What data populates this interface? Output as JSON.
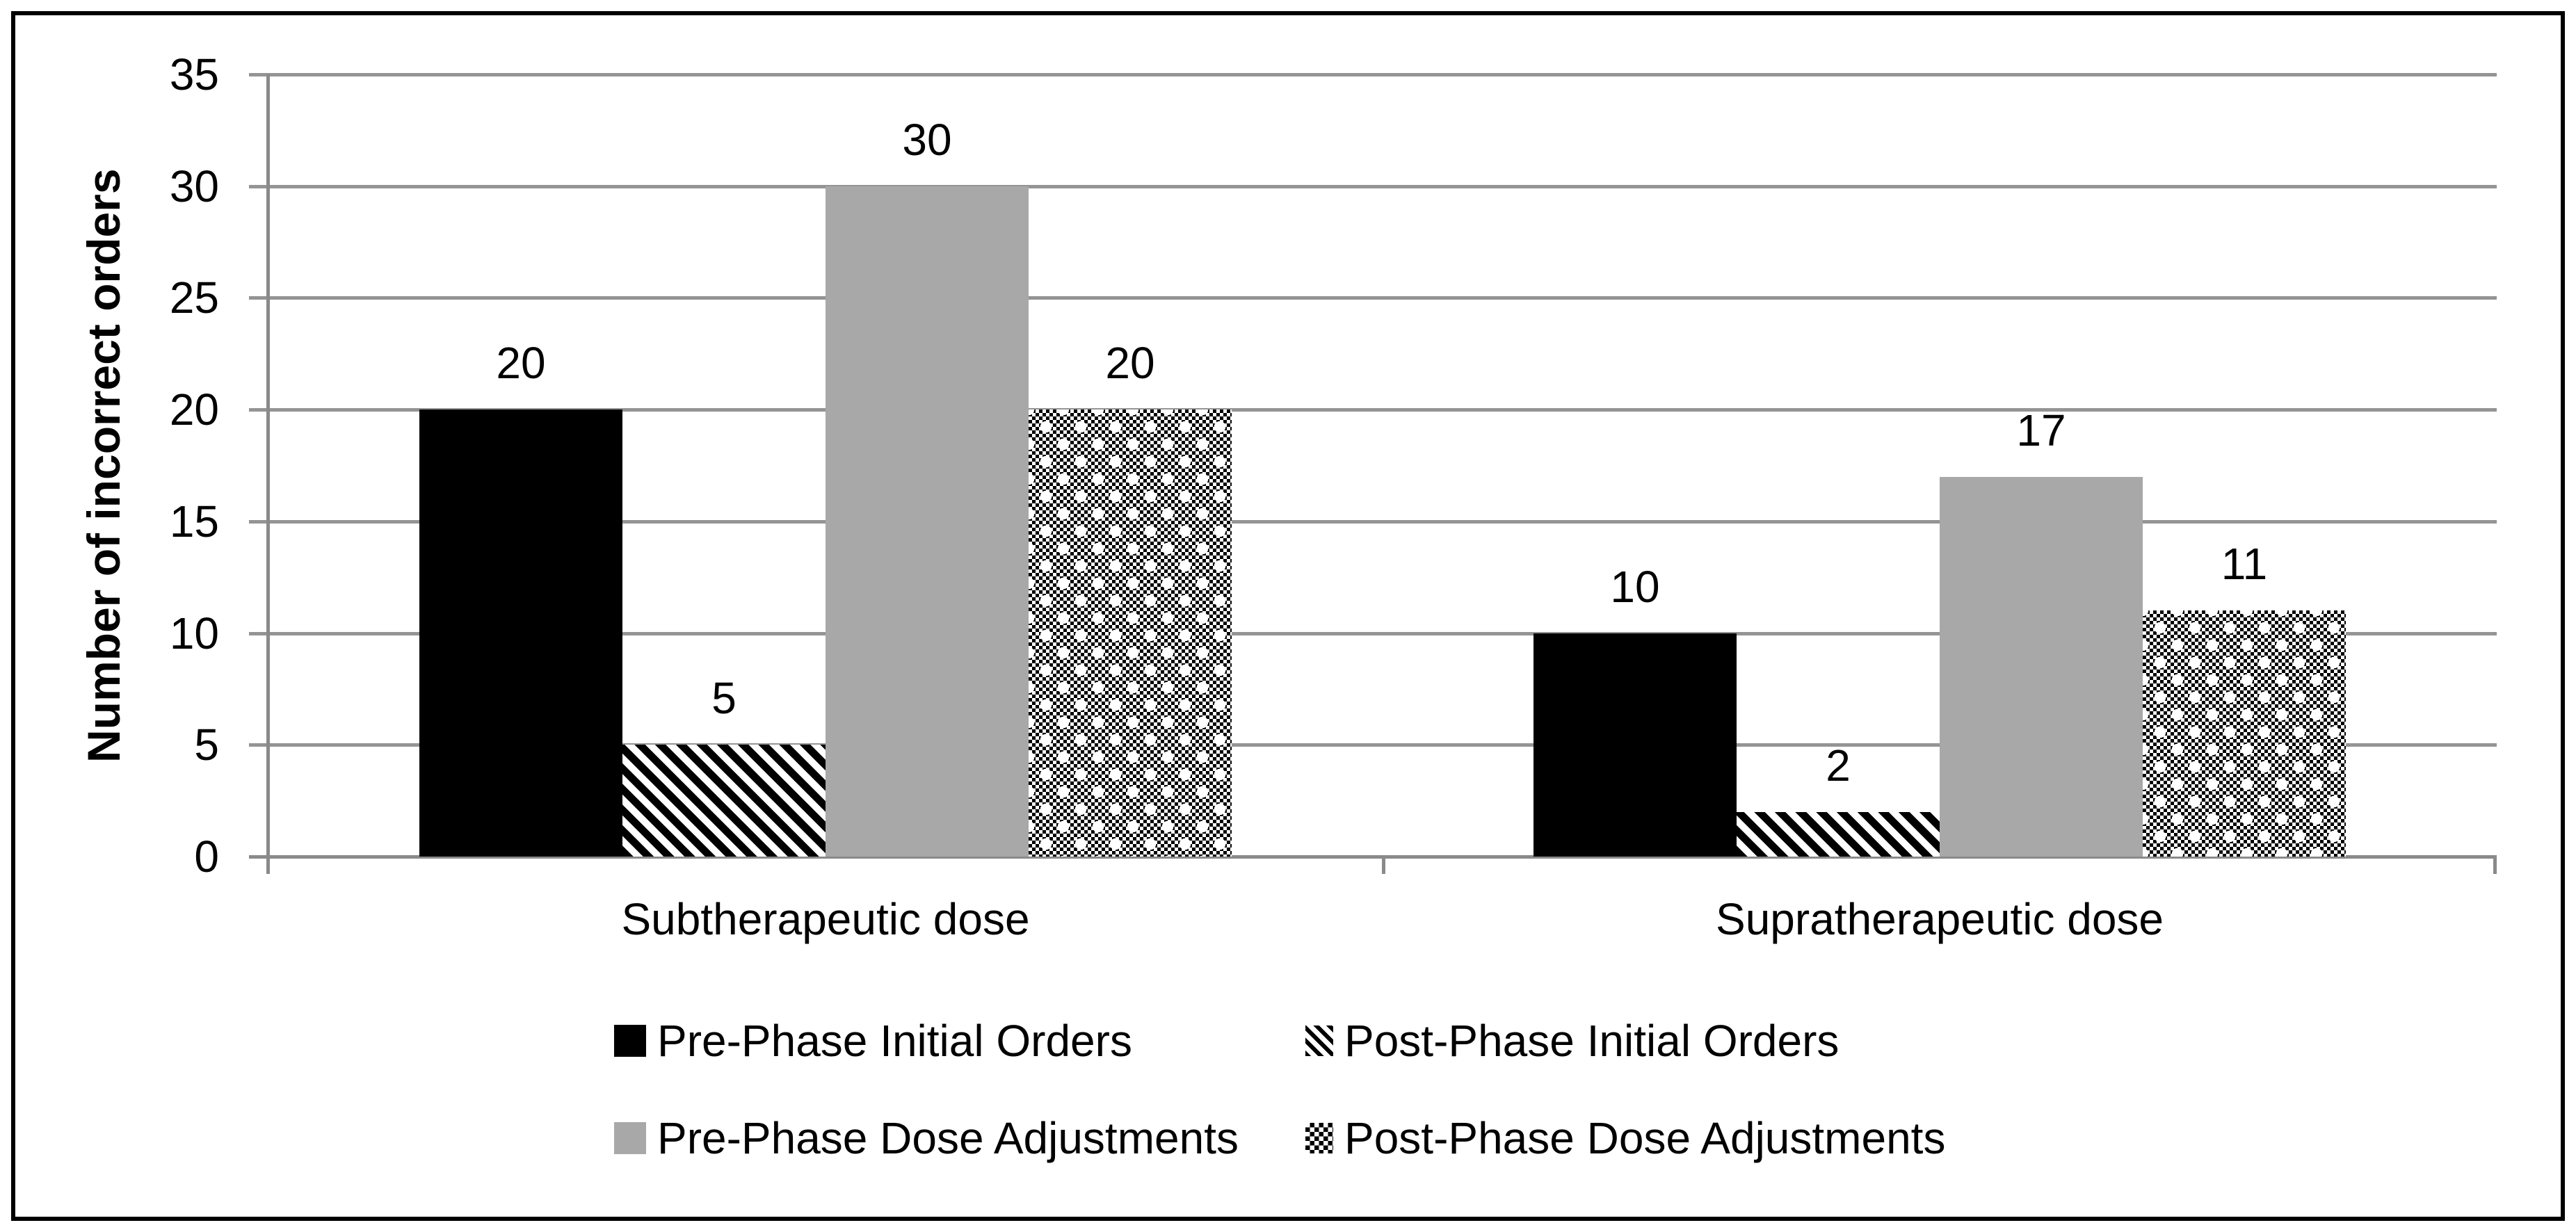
{
  "figure": {
    "background": "#ffffff",
    "border_color": "#000000"
  },
  "chart_data": {
    "type": "bar",
    "title": "",
    "xlabel": "",
    "ylabel": "Number of incorrect orders",
    "categories": [
      "Subtherapeutic dose",
      "Supratherapeutic dose"
    ],
    "series": [
      {
        "name": "Pre-Phase Initial Orders",
        "values": [
          20,
          10
        ],
        "fill": "solid-black",
        "color": "#000000"
      },
      {
        "name": "Post-Phase Initial Orders",
        "values": [
          5,
          2
        ],
        "fill": "diagonal-stripes",
        "color": "#000000"
      },
      {
        "name": "Pre-Phase Dose Adjustments",
        "values": [
          30,
          17
        ],
        "fill": "solid-gray",
        "color": "#a8a8a8"
      },
      {
        "name": "Post-Phase Dose Adjustments",
        "values": [
          20,
          11
        ],
        "fill": "checkerboard-dots",
        "color": "#000000"
      }
    ],
    "ylim": [
      0,
      35
    ],
    "yticks": [
      0,
      5,
      10,
      15,
      20,
      25,
      30,
      35
    ],
    "grid": "horizontal",
    "grid_color": "#949494",
    "axis_color": "#8a8a8a",
    "data_labels": true,
    "legend_position": "bottom",
    "legend_rows": 2
  }
}
